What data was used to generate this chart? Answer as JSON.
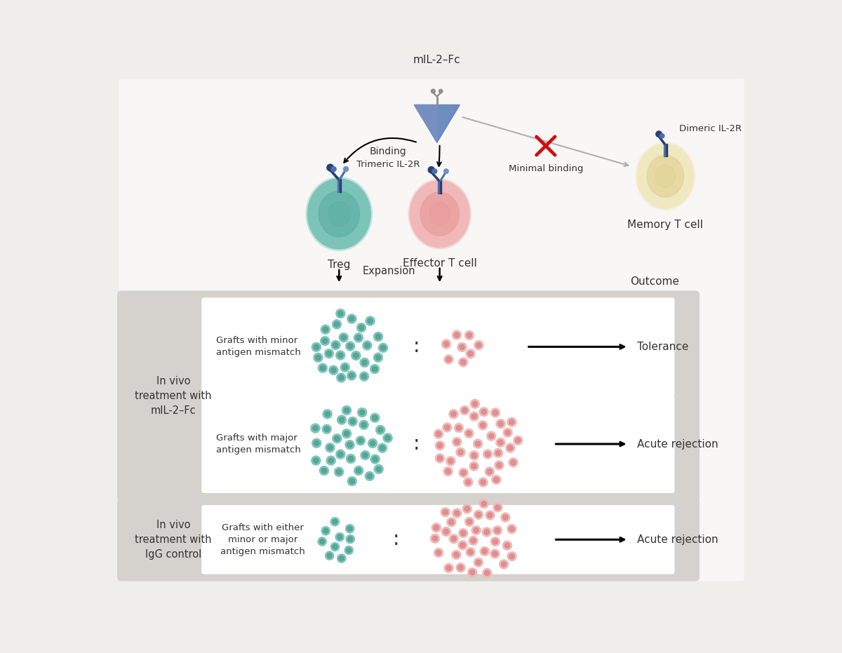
{
  "bg_color": "#f0eeeb",
  "white": "#ffffff",
  "teal_outer": "#7dc4b8",
  "teal_inner": "#5aada0",
  "teal_nucleus": "#4a9a8e",
  "pink_outer": "#f0b8b8",
  "pink_inner": "#e89898",
  "pink_nucleus": "#d88080",
  "blue_dark": "#2a4070",
  "blue_mid": "#4a70b0",
  "blue_light": "#7090c0",
  "molecule_color": "#6080b8",
  "molecule_color2": "#8090c8",
  "gray_receptor": "#909090",
  "gray_arrow": "#b0b0b0",
  "red_x": "#cc1111",
  "memory_outer": "#f0e8c0",
  "memory_inner": "#e0d090",
  "text_color": "#333333",
  "panel_bg": "#d5d2cd",
  "title": "mIL-2–Fc",
  "trimeric_label": "Trimeric IL-2R",
  "dimeric_label": "Dimeric IL-2R",
  "binding_label": "Binding",
  "minimal_binding_label": "Minimal binding",
  "treg_label": "Treg",
  "effector_label": "Effector T cell",
  "memory_label": "Memory T cell",
  "expansion_label": "Expansion",
  "outcome_label": "Outcome",
  "treatment1_label": "In vivo\ntreatment with\nmIL-2–Fc",
  "treatment2_label": "In vivo\ntreatment with\nIgG control",
  "minor_mismatch_label": "Grafts with minor\nantigen mismatch",
  "major_mismatch_label": "Grafts with major\nantigen mismatch",
  "either_mismatch_label": "Grafts with either\nminor or major\nantigen mismatch",
  "tolerance_label": "Tolerance",
  "acute_rejection_label": "Acute rejection"
}
